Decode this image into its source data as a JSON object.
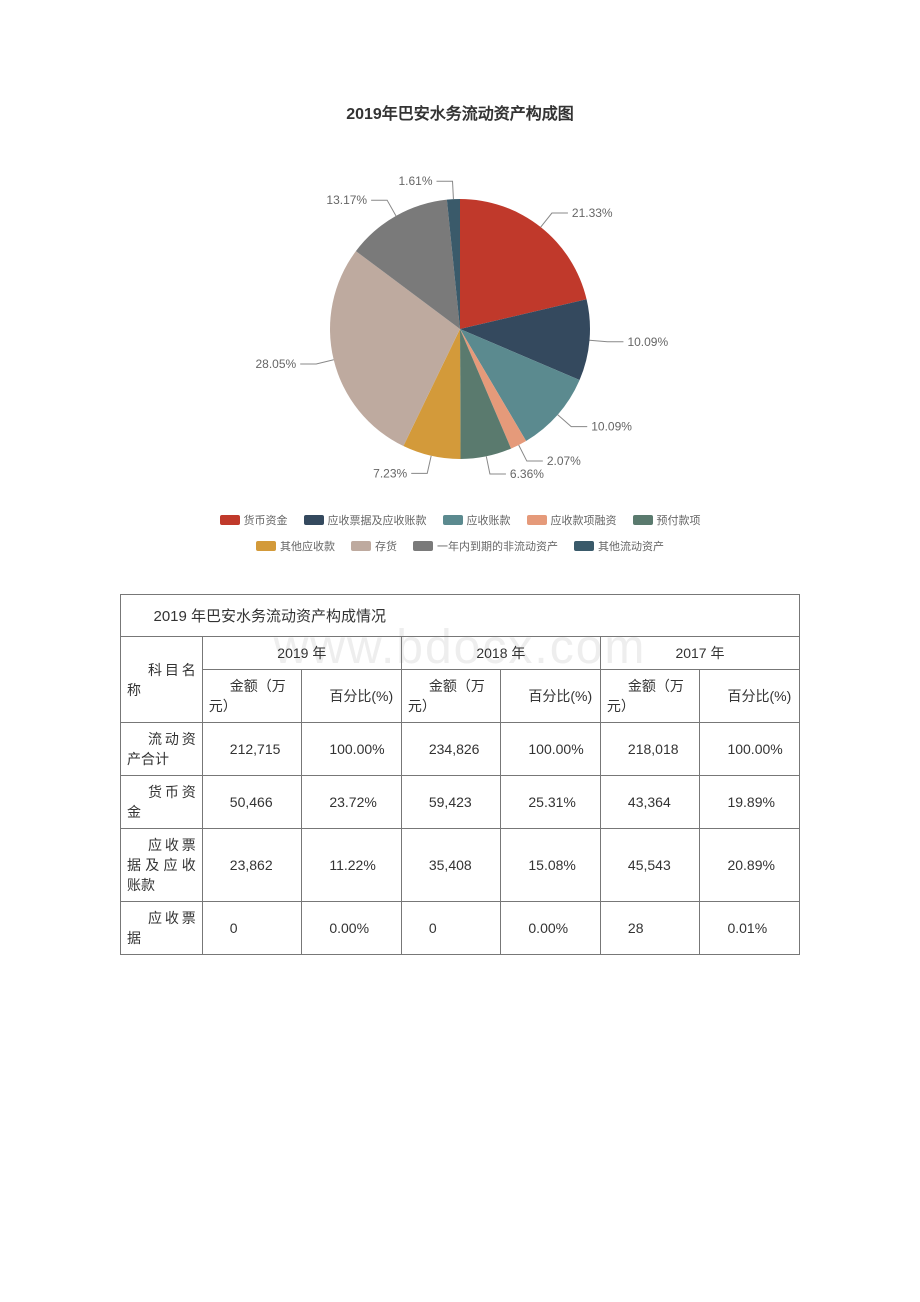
{
  "chart": {
    "title": "2019年巴安水务流动资产构成图",
    "title_fontsize": 16,
    "background_color": "#ffffff",
    "label_fontsize": 12,
    "label_color": "#888888",
    "leader_color": "#888888",
    "slices": [
      {
        "name": "货币资金",
        "value": 21.33,
        "label": "21.33%",
        "color": "#c0392b"
      },
      {
        "name": "应收票据及应收账款",
        "value": 10.09,
        "label": "10.09%",
        "color": "#34495e"
      },
      {
        "name": "应收账款",
        "value": 10.09,
        "label": "10.09%",
        "color": "#5b8a8f"
      },
      {
        "name": "应收款项融资",
        "value": 2.07,
        "label": "2.07%",
        "color": "#e59a7a"
      },
      {
        "name": "预付款项",
        "value": 6.36,
        "label": "6.36%",
        "color": "#5a7a6e"
      },
      {
        "name": "其他应收款",
        "value": 7.23,
        "label": "7.23%",
        "color": "#d39a3a"
      },
      {
        "name": "存货",
        "value": 28.05,
        "label": "28.05%",
        "color": "#beaa9f"
      },
      {
        "name": "一年内到期的非流动资产",
        "value": 13.17,
        "label": "13.17%",
        "color": "#7a7a7a"
      },
      {
        "name": "其他流动资产",
        "value": 1.61,
        "label": "1.61%",
        "color": "#3a5a6a"
      }
    ]
  },
  "watermark": "www.bdocx.com",
  "table": {
    "caption": "2019 年巴安水务流动资产构成情况",
    "header_col1": "科目名称",
    "years": [
      "2019 年",
      "2018 年",
      "2017 年"
    ],
    "sub_headers": {
      "amount": "金额（万元）",
      "percent": "百分比(%)"
    },
    "rows": [
      {
        "name": "流动资产合计",
        "y2019_amt": "212,715",
        "y2019_pct": "100.00%",
        "y2018_amt": "234,826",
        "y2018_pct": "100.00%",
        "y2017_amt": "218,018",
        "y2017_pct": "100.00%"
      },
      {
        "name": "货币资金",
        "y2019_amt": "50,466",
        "y2019_pct": "23.72%",
        "y2018_amt": "59,423",
        "y2018_pct": "25.31%",
        "y2017_amt": "43,364",
        "y2017_pct": "19.89%"
      },
      {
        "name": "应收票据及应收账款",
        "y2019_amt": "23,862",
        "y2019_pct": "11.22%",
        "y2018_amt": "35,408",
        "y2018_pct": "15.08%",
        "y2017_amt": "45,543",
        "y2017_pct": "20.89%"
      },
      {
        "name": "应收票据",
        "y2019_amt": "0",
        "y2019_pct": "0.00%",
        "y2018_amt": "0",
        "y2018_pct": "0.00%",
        "y2017_amt": "28",
        "y2017_pct": "0.01%"
      }
    ]
  }
}
